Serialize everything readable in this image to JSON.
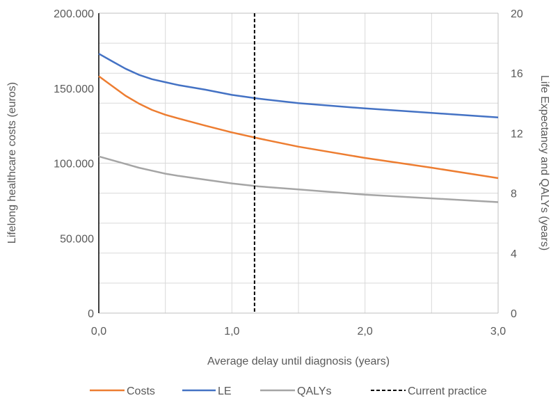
{
  "chart_data": {
    "type": "line",
    "xlabel": "Average delay until diagnosis (years)",
    "ylabel_left": "Lifelong healthcare costs (euros)",
    "ylabel_right": "Life Expectancy and QALYs (years)",
    "xlim": [
      0,
      3
    ],
    "ylim_left": [
      0,
      200000
    ],
    "ylim_right": [
      0,
      20
    ],
    "x_ticks": [
      "0,0",
      "1,0",
      "2,0",
      "3,0"
    ],
    "y_left_ticks": [
      "0",
      "50.000",
      "100.000",
      "150.000",
      "200.000"
    ],
    "y_right_ticks": [
      "0",
      "4",
      "8",
      "12",
      "16",
      "20"
    ],
    "grid": true,
    "legend_position": "bottom",
    "x": [
      0,
      0.1,
      0.2,
      0.3,
      0.4,
      0.5,
      0.6,
      0.8,
      1.0,
      1.2,
      1.5,
      2.0,
      2.5,
      3.0
    ],
    "series": [
      {
        "name": "Costs",
        "axis": "left",
        "color": "#ED7D31",
        "values": [
          158000,
          151500,
          145000,
          139800,
          135500,
          132300,
          129800,
          125000,
          120500,
          116500,
          111000,
          103500,
          97000,
          90000
        ]
      },
      {
        "name": "LE",
        "axis": "right",
        "color": "#4472C4",
        "values": [
          17.3,
          16.8,
          16.3,
          15.9,
          15.6,
          15.4,
          15.2,
          14.9,
          14.55,
          14.3,
          14.0,
          13.65,
          13.35,
          13.05
        ]
      },
      {
        "name": "QALYs",
        "axis": "right",
        "color": "#A5A5A5",
        "values": [
          10.45,
          10.2,
          9.95,
          9.7,
          9.5,
          9.3,
          9.15,
          8.9,
          8.65,
          8.45,
          8.25,
          7.9,
          7.65,
          7.4
        ]
      }
    ],
    "reference_line": {
      "name": "Current practice",
      "x": 1.17,
      "color": "#000000",
      "style": "dashed"
    }
  }
}
